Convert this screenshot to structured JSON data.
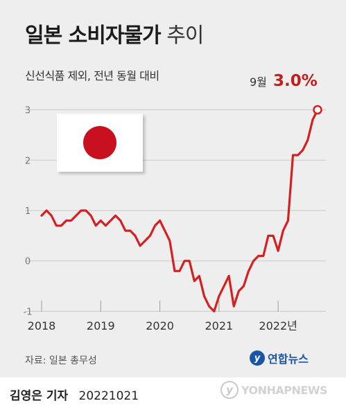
{
  "header": {
    "title_main": "일본 소비자물가",
    "title_sub": "추이",
    "subtitle": "신선식품 제외, 전년 동월 대비"
  },
  "callout": {
    "month": "9월",
    "value": "3.0%"
  },
  "chart_data": {
    "type": "line",
    "title": "일본 소비자물가 추이",
    "subtitle": "신선식품 제외, 전년 동월 대비",
    "unit": "%",
    "ylim": [
      -1.2,
      3.2
    ],
    "yticks": [
      3,
      2,
      1,
      0,
      -1
    ],
    "ytick_labels": [
      "3",
      "2",
      "1",
      "0",
      "-1"
    ],
    "xticks": [
      "2018",
      "2019",
      "2020",
      "2021",
      "2022년"
    ],
    "grid": "horizontal",
    "line_color": "#d42020",
    "series": [
      {
        "x": [
          "2018-01",
          "2018-02",
          "2018-03",
          "2018-04",
          "2018-05",
          "2018-06",
          "2018-07",
          "2018-08",
          "2018-09",
          "2018-10",
          "2018-11",
          "2018-12",
          "2019-01",
          "2019-02",
          "2019-03",
          "2019-04",
          "2019-05",
          "2019-06",
          "2019-07",
          "2019-08",
          "2019-09",
          "2019-10",
          "2019-11",
          "2019-12",
          "2020-01",
          "2020-02",
          "2020-03",
          "2020-04",
          "2020-05",
          "2020-06",
          "2020-07",
          "2020-08",
          "2020-09",
          "2020-10",
          "2020-11",
          "2020-12",
          "2021-01",
          "2021-02",
          "2021-03",
          "2021-04",
          "2021-05",
          "2021-06",
          "2021-07",
          "2021-08",
          "2021-09",
          "2021-10",
          "2021-11",
          "2021-12",
          "2022-01",
          "2022-02",
          "2022-03",
          "2022-04",
          "2022-05",
          "2022-06",
          "2022-07",
          "2022-08",
          "2022-09"
        ],
        "values": [
          0.9,
          1.0,
          0.9,
          0.7,
          0.7,
          0.8,
          0.8,
          0.9,
          1.0,
          1.0,
          0.9,
          0.7,
          0.8,
          0.7,
          0.8,
          0.9,
          0.8,
          0.6,
          0.6,
          0.5,
          0.3,
          0.4,
          0.5,
          0.7,
          0.8,
          0.6,
          0.4,
          -0.2,
          -0.2,
          0.0,
          0.0,
          -0.4,
          -0.3,
          -0.7,
          -0.9,
          -1.0,
          -0.7,
          -0.5,
          -0.3,
          -0.9,
          -0.6,
          -0.5,
          -0.2,
          0.0,
          0.1,
          0.1,
          0.5,
          0.5,
          0.2,
          0.6,
          0.8,
          2.1,
          2.1,
          2.2,
          2.4,
          2.8,
          3.0
        ]
      }
    ]
  },
  "footer": {
    "source": "자료: 일본 총무성",
    "logo_text": "연합뉴스",
    "reporter": "김영은 기자",
    "date": "20221021",
    "watermark": "YONHAPNEWS"
  }
}
